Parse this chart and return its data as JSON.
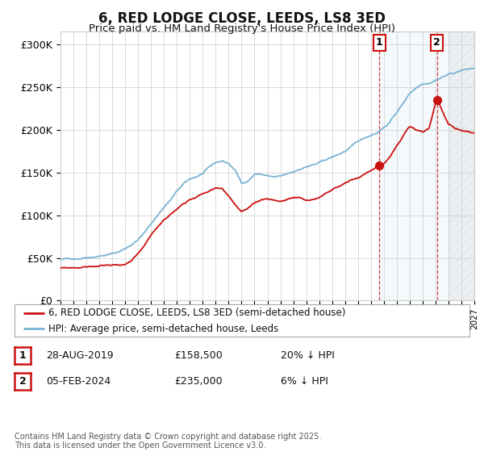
{
  "title": "6, RED LODGE CLOSE, LEEDS, LS8 3ED",
  "subtitle": "Price paid vs. HM Land Registry's House Price Index (HPI)",
  "ylabel_ticks": [
    "£0",
    "£50K",
    "£100K",
    "£150K",
    "£200K",
    "£250K",
    "£300K"
  ],
  "ytick_vals": [
    0,
    50000,
    100000,
    150000,
    200000,
    250000,
    300000
  ],
  "ylim": [
    0,
    315000
  ],
  "xlim_start": 1995,
  "xlim_end": 2027,
  "hpi_color": "#7ab3d4",
  "price_color": "#cc1111",
  "background_color": "#ffffff",
  "plot_bg_color": "#ffffff",
  "grid_color": "#cccccc",
  "legend_entries": [
    "6, RED LODGE CLOSE, LEEDS, LS8 3ED (semi-detached house)",
    "HPI: Average price, semi-detached house, Leeds"
  ],
  "ann1_x": 2019.65,
  "ann1_y": 158500,
  "ann2_x": 2024.1,
  "ann2_y": 235000,
  "shade_start": 2019.65,
  "shade_end": 2027,
  "footer": "Contains HM Land Registry data © Crown copyright and database right 2025.\nThis data is licensed under the Open Government Licence v3.0.",
  "table_rows": [
    {
      "num": "1",
      "date": "28-AUG-2019",
      "price": "£158,500",
      "hpi": "20% ↓ HPI"
    },
    {
      "num": "2",
      "date": "05-FEB-2024",
      "price": "£235,000",
      "hpi": "6% ↓ HPI"
    }
  ]
}
